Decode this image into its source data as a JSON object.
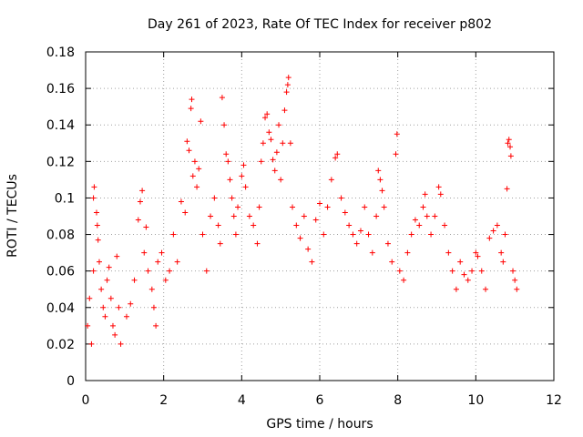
{
  "chart_data": {
    "type": "scatter",
    "title": "Day 261 of 2023, Rate Of TEC Index for receiver p802",
    "xlabel": "GPS time / hours",
    "ylabel": "ROTI / TECUs",
    "xlim": [
      0,
      12
    ],
    "ylim": [
      0,
      0.18
    ],
    "xticks": [
      0,
      2,
      4,
      6,
      8,
      10,
      12
    ],
    "yticks": [
      0,
      0.02,
      0.04,
      0.06,
      0.08,
      0.1,
      0.12,
      0.14,
      0.16,
      0.18
    ],
    "xtick_labels": [
      "0",
      "2",
      "4",
      "6",
      "8",
      "10",
      "12"
    ],
    "ytick_labels": [
      "0",
      "0.02",
      "0.04",
      "0.06",
      "0.08",
      "0.1",
      "0.12",
      "0.14",
      "0.16",
      "0.18"
    ],
    "grid": true,
    "marker": "+",
    "marker_color": "#ff0000",
    "series": [
      {
        "points": [
          [
            0.05,
            0.03
          ],
          [
            0.1,
            0.045
          ],
          [
            0.15,
            0.02
          ],
          [
            0.2,
            0.06
          ],
          [
            0.2,
            0.1
          ],
          [
            0.22,
            0.106
          ],
          [
            0.28,
            0.092
          ],
          [
            0.3,
            0.085
          ],
          [
            0.32,
            0.077
          ],
          [
            0.35,
            0.065
          ],
          [
            0.4,
            0.05
          ],
          [
            0.45,
            0.04
          ],
          [
            0.5,
            0.035
          ],
          [
            0.55,
            0.055
          ],
          [
            0.6,
            0.062
          ],
          [
            0.65,
            0.045
          ],
          [
            0.7,
            0.03
          ],
          [
            0.75,
            0.025
          ],
          [
            0.8,
            0.068
          ],
          [
            0.85,
            0.04
          ],
          [
            0.9,
            0.02
          ],
          [
            1.05,
            0.035
          ],
          [
            1.15,
            0.042
          ],
          [
            1.25,
            0.055
          ],
          [
            1.35,
            0.088
          ],
          [
            1.4,
            0.098
          ],
          [
            1.45,
            0.104
          ],
          [
            1.5,
            0.07
          ],
          [
            1.55,
            0.084
          ],
          [
            1.6,
            0.06
          ],
          [
            1.7,
            0.05
          ],
          [
            1.75,
            0.04
          ],
          [
            1.8,
            0.03
          ],
          [
            1.85,
            0.065
          ],
          [
            1.95,
            0.07
          ],
          [
            2.05,
            0.055
          ],
          [
            2.15,
            0.06
          ],
          [
            2.25,
            0.08
          ],
          [
            2.35,
            0.065
          ],
          [
            2.45,
            0.098
          ],
          [
            2.55,
            0.092
          ],
          [
            2.6,
            0.131
          ],
          [
            2.65,
            0.126
          ],
          [
            2.7,
            0.149
          ],
          [
            2.72,
            0.154
          ],
          [
            2.75,
            0.112
          ],
          [
            2.8,
            0.12
          ],
          [
            2.85,
            0.106
          ],
          [
            2.9,
            0.116
          ],
          [
            2.95,
            0.142
          ],
          [
            3.0,
            0.08
          ],
          [
            3.1,
            0.06
          ],
          [
            3.2,
            0.09
          ],
          [
            3.3,
            0.1
          ],
          [
            3.4,
            0.085
          ],
          [
            3.45,
            0.075
          ],
          [
            3.5,
            0.155
          ],
          [
            3.55,
            0.14
          ],
          [
            3.6,
            0.124
          ],
          [
            3.65,
            0.12
          ],
          [
            3.7,
            0.11
          ],
          [
            3.75,
            0.1
          ],
          [
            3.8,
            0.09
          ],
          [
            3.85,
            0.08
          ],
          [
            3.9,
            0.095
          ],
          [
            4.0,
            0.112
          ],
          [
            4.05,
            0.118
          ],
          [
            4.1,
            0.106
          ],
          [
            4.2,
            0.09
          ],
          [
            4.3,
            0.085
          ],
          [
            4.4,
            0.075
          ],
          [
            4.45,
            0.095
          ],
          [
            4.5,
            0.12
          ],
          [
            4.55,
            0.13
          ],
          [
            4.6,
            0.144
          ],
          [
            4.65,
            0.146
          ],
          [
            4.7,
            0.136
          ],
          [
            4.75,
            0.132
          ],
          [
            4.8,
            0.121
          ],
          [
            4.85,
            0.115
          ],
          [
            4.9,
            0.125
          ],
          [
            4.95,
            0.14
          ],
          [
            5.0,
            0.11
          ],
          [
            5.05,
            0.13
          ],
          [
            5.1,
            0.148
          ],
          [
            5.15,
            0.158
          ],
          [
            5.18,
            0.162
          ],
          [
            5.2,
            0.166
          ],
          [
            5.25,
            0.13
          ],
          [
            5.3,
            0.095
          ],
          [
            5.4,
            0.085
          ],
          [
            5.5,
            0.078
          ],
          [
            5.6,
            0.09
          ],
          [
            5.7,
            0.072
          ],
          [
            5.8,
            0.065
          ],
          [
            5.9,
            0.088
          ],
          [
            6.0,
            0.097
          ],
          [
            6.1,
            0.08
          ],
          [
            6.2,
            0.095
          ],
          [
            6.3,
            0.11
          ],
          [
            6.4,
            0.122
          ],
          [
            6.45,
            0.124
          ],
          [
            6.55,
            0.1
          ],
          [
            6.65,
            0.092
          ],
          [
            6.75,
            0.085
          ],
          [
            6.85,
            0.08
          ],
          [
            6.95,
            0.075
          ],
          [
            7.05,
            0.082
          ],
          [
            7.15,
            0.095
          ],
          [
            7.25,
            0.08
          ],
          [
            7.35,
            0.07
          ],
          [
            7.45,
            0.09
          ],
          [
            7.5,
            0.115
          ],
          [
            7.55,
            0.11
          ],
          [
            7.6,
            0.104
          ],
          [
            7.65,
            0.095
          ],
          [
            7.75,
            0.075
          ],
          [
            7.85,
            0.065
          ],
          [
            7.95,
            0.124
          ],
          [
            7.98,
            0.135
          ],
          [
            8.05,
            0.06
          ],
          [
            8.15,
            0.055
          ],
          [
            8.25,
            0.07
          ],
          [
            8.35,
            0.08
          ],
          [
            8.45,
            0.088
          ],
          [
            8.55,
            0.085
          ],
          [
            8.65,
            0.095
          ],
          [
            8.7,
            0.102
          ],
          [
            8.75,
            0.09
          ],
          [
            8.85,
            0.08
          ],
          [
            8.95,
            0.09
          ],
          [
            9.05,
            0.106
          ],
          [
            9.1,
            0.102
          ],
          [
            9.2,
            0.085
          ],
          [
            9.3,
            0.07
          ],
          [
            9.4,
            0.06
          ],
          [
            9.5,
            0.05
          ],
          [
            9.6,
            0.065
          ],
          [
            9.7,
            0.058
          ],
          [
            9.8,
            0.055
          ],
          [
            9.9,
            0.06
          ],
          [
            10.0,
            0.07
          ],
          [
            10.05,
            0.068
          ],
          [
            10.15,
            0.06
          ],
          [
            10.25,
            0.05
          ],
          [
            10.35,
            0.078
          ],
          [
            10.45,
            0.082
          ],
          [
            10.55,
            0.085
          ],
          [
            10.65,
            0.07
          ],
          [
            10.7,
            0.065
          ],
          [
            10.75,
            0.08
          ],
          [
            10.8,
            0.105
          ],
          [
            10.82,
            0.13
          ],
          [
            10.85,
            0.132
          ],
          [
            10.88,
            0.128
          ],
          [
            10.9,
            0.123
          ],
          [
            10.95,
            0.06
          ],
          [
            11.0,
            0.055
          ],
          [
            11.05,
            0.05
          ]
        ]
      }
    ]
  }
}
